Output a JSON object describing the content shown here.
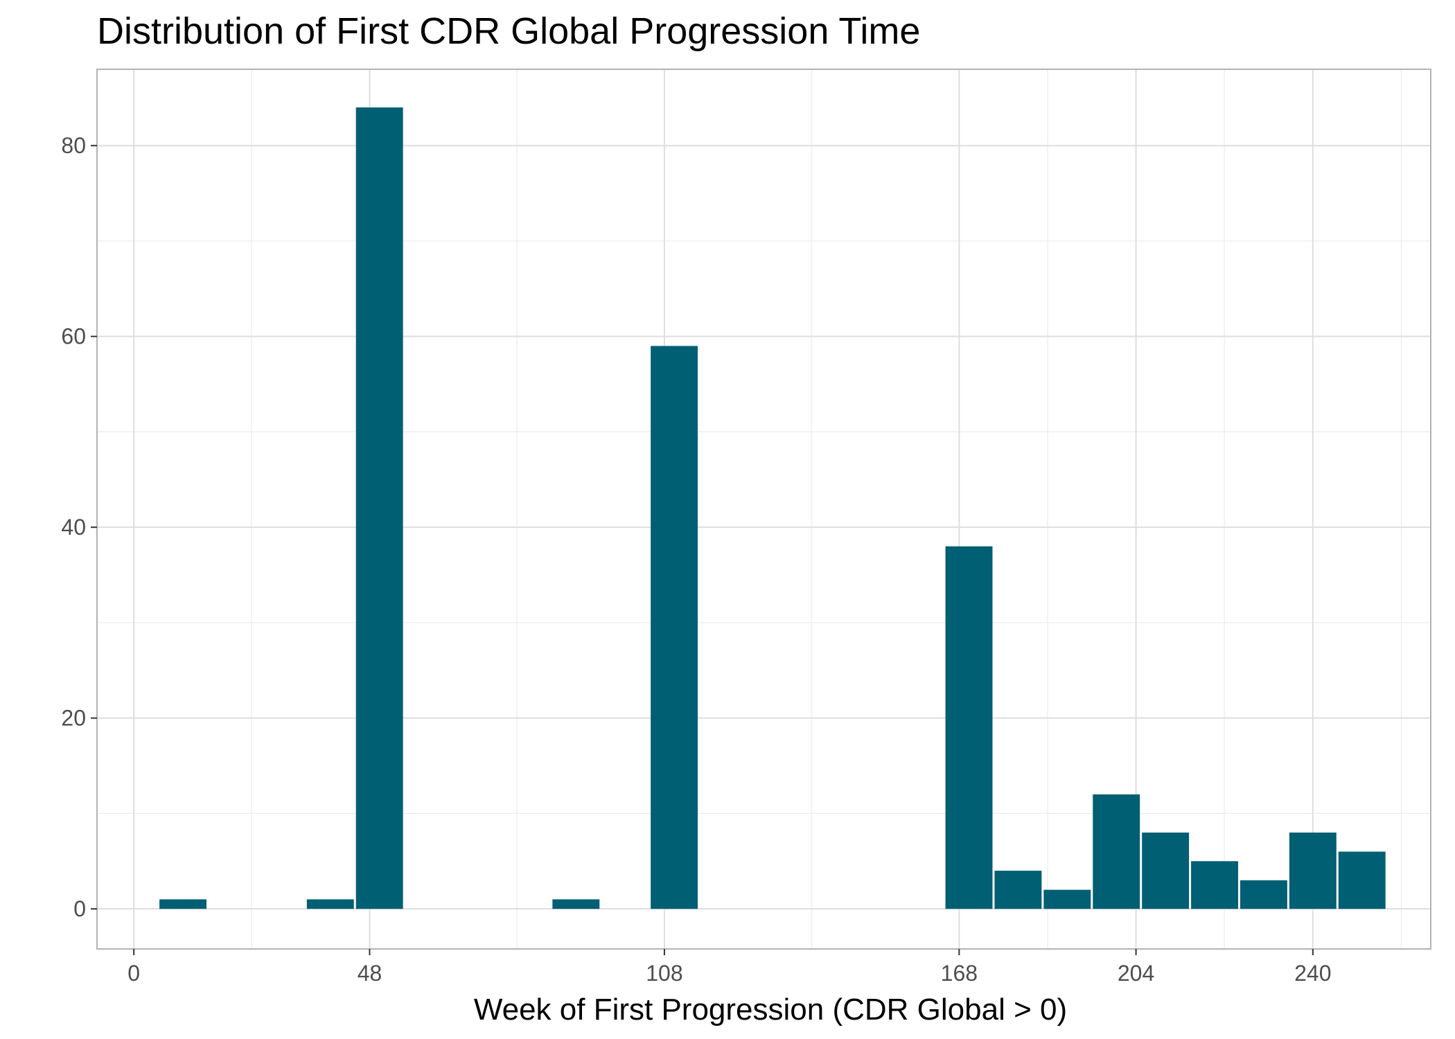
{
  "chart_data": {
    "type": "bar",
    "title": "Distribution of First CDR Global Progression Time",
    "xlabel": "Week of First Progression (CDR Global > 0)",
    "ylabel": "",
    "x_ticks": [
      0,
      48,
      108,
      168,
      204,
      240
    ],
    "y_ticks": [
      0,
      20,
      40,
      60,
      80
    ],
    "xlim": [
      -7.5,
      264
    ],
    "ylim": [
      -4.2,
      88
    ],
    "grid": true,
    "legend": "none",
    "bar_color": "#005f73",
    "bins": [
      {
        "start": 5,
        "end": 15,
        "count": 1
      },
      {
        "start": 35,
        "end": 45,
        "count": 1
      },
      {
        "start": 45,
        "end": 55,
        "count": 84
      },
      {
        "start": 85,
        "end": 95,
        "count": 1
      },
      {
        "start": 105,
        "end": 115,
        "count": 59
      },
      {
        "start": 165,
        "end": 175,
        "count": 38
      },
      {
        "start": 175,
        "end": 185,
        "count": 4
      },
      {
        "start": 185,
        "end": 195,
        "count": 2
      },
      {
        "start": 195,
        "end": 205,
        "count": 12
      },
      {
        "start": 205,
        "end": 215,
        "count": 8
      },
      {
        "start": 215,
        "end": 225,
        "count": 5
      },
      {
        "start": 225,
        "end": 235,
        "count": 3
      },
      {
        "start": 235,
        "end": 245,
        "count": 8
      },
      {
        "start": 245,
        "end": 255,
        "count": 6
      }
    ]
  }
}
